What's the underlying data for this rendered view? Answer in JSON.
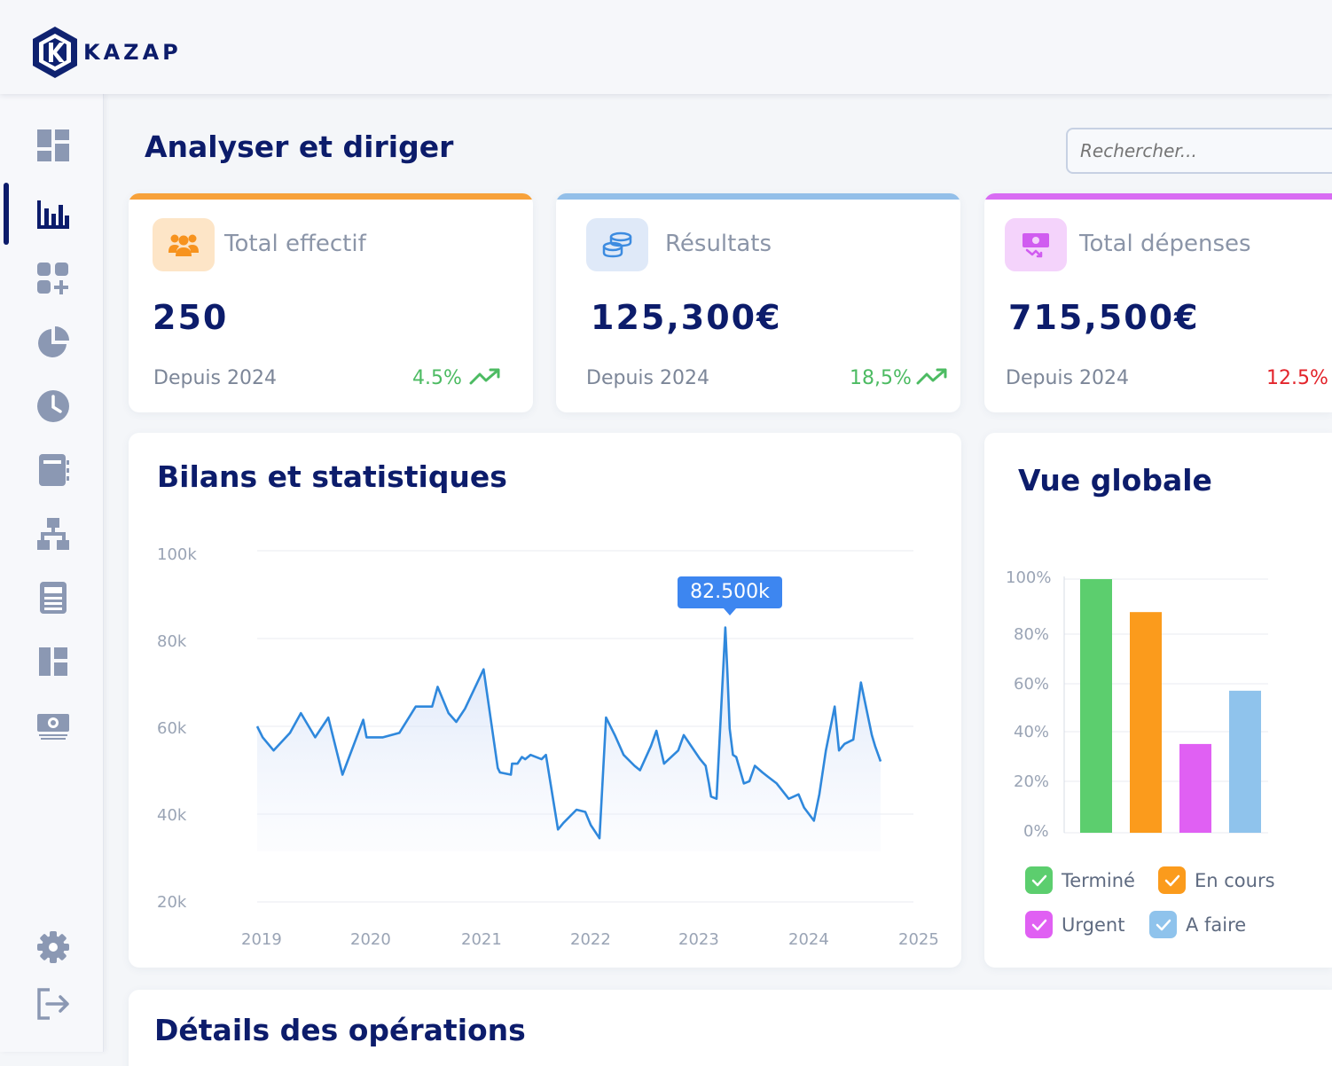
{
  "brand": {
    "name": "KAZAP"
  },
  "sidebar": {
    "items": [
      {
        "name": "dashboard-icon"
      },
      {
        "name": "bar-chart-icon"
      },
      {
        "name": "add-widget-icon"
      },
      {
        "name": "pie-chart-icon"
      },
      {
        "name": "clock-icon"
      },
      {
        "name": "notebook-icon"
      },
      {
        "name": "org-chart-icon"
      },
      {
        "name": "document-icon"
      },
      {
        "name": "layout-icon"
      },
      {
        "name": "money-icon"
      }
    ],
    "active_index": 1,
    "bottom": [
      {
        "name": "settings-icon"
      },
      {
        "name": "logout-icon"
      }
    ]
  },
  "header": {
    "title": "Analyser et diriger",
    "search_placeholder": "Rechercher..."
  },
  "stats": [
    {
      "label": "Total effectif",
      "value": "250",
      "since": "Depuis 2024",
      "pct": "4.5%",
      "trend": "up",
      "accent": "#f7a13a",
      "icon": "users-icon",
      "icon_bg": "#fde5c7",
      "icon_color": "#f7931e",
      "pct_color": "#4cbb62"
    },
    {
      "label": "Résultats",
      "value": "125,300€",
      "since": "Depuis 2024",
      "pct": "18,5%",
      "trend": "up",
      "accent": "#93bfe9",
      "icon": "coins-icon",
      "icon_bg": "#dfe9f8",
      "icon_color": "#3c8be0",
      "pct_color": "#4cbb62"
    },
    {
      "label": "Total dépenses",
      "value": "715,500€",
      "since": "Depuis 2024",
      "pct": "12.5%",
      "trend": "down",
      "accent": "#d86cf3",
      "icon": "expense-icon",
      "icon_bg": "#f4d3fb",
      "icon_color": "#d05cf0",
      "pct_color": "#e3242b"
    }
  ],
  "line_section": {
    "title": "Bilans et statistiques",
    "tooltip": "82.500k"
  },
  "bar_section": {
    "title": "Vue globale"
  },
  "details_section": {
    "title": "Détails des opérations"
  },
  "chart_data": [
    {
      "type": "line",
      "ylim": [
        20000,
        100000
      ],
      "y_ticks": [
        "100k",
        "80k",
        "60k",
        "40k",
        "20k"
      ],
      "x_ticks": [
        "2019",
        "2020",
        "2021",
        "2022",
        "2023",
        "2024",
        "2025"
      ],
      "xlim": [
        2019,
        2025
      ],
      "color": "#2f88dc",
      "series": [
        {
          "x": [
            2019.0,
            2019.05,
            2019.15,
            2019.3,
            2019.4,
            2019.53,
            2019.65,
            2019.78,
            2019.97,
            2020.0,
            2020.15,
            2020.3,
            2020.45,
            2020.6,
            2020.65,
            2020.75,
            2020.82,
            2020.9,
            2021.07,
            2021.2,
            2021.22,
            2021.32,
            2021.33,
            2021.38,
            2021.42,
            2021.45,
            2021.5,
            2021.6,
            2021.64,
            2021.75,
            2021.8,
            2021.92,
            2022.0,
            2022.05,
            2022.13,
            2022.19,
            2022.27,
            2022.35,
            2022.45,
            2022.5,
            2022.6,
            2022.65,
            2022.72,
            2022.85,
            2022.9,
            2023.05,
            2023.1,
            2023.13,
            2023.15,
            2023.2,
            2023.28,
            2023.3,
            2023.32,
            2023.35,
            2023.38,
            2023.45,
            2023.5,
            2023.55,
            2023.62,
            2023.67,
            2023.75,
            2023.86,
            2023.95,
            2024.0,
            2024.09,
            2024.14,
            2024.2,
            2024.28,
            2024.32,
            2024.37,
            2024.45,
            2024.52,
            2024.62,
            2024.65,
            2024.7
          ],
          "y": [
            60000,
            57500,
            54500,
            58500,
            63000,
            57500,
            62000,
            49000,
            61500,
            57500,
            57500,
            58500,
            64500,
            64500,
            69000,
            63000,
            61000,
            64000,
            73000,
            50500,
            49500,
            49000,
            51500,
            51500,
            53000,
            52500,
            53500,
            52500,
            53500,
            36500,
            38000,
            41000,
            40500,
            37500,
            34500,
            62000,
            58000,
            53500,
            51000,
            50000,
            55500,
            59000,
            51500,
            54500,
            58000,
            52500,
            51000,
            47000,
            44000,
            43500,
            82500,
            72000,
            59500,
            53500,
            53000,
            47000,
            47500,
            51000,
            49500,
            48500,
            47000,
            43500,
            44500,
            41500,
            38500,
            44500,
            54500,
            64500,
            54500,
            56000,
            57000,
            70000,
            58000,
            55500,
            52000
          ]
        }
      ]
    },
    {
      "type": "bar",
      "ylim": [
        0,
        100
      ],
      "y_ticks": [
        "100%",
        "80%",
        "60%",
        "40%",
        "20%",
        "0%"
      ],
      "categories": [
        "Terminé",
        "En cours",
        "Urgent",
        "A faire"
      ],
      "values": [
        100,
        87,
        35,
        56
      ],
      "colors": [
        "#5cce6e",
        "#fb9b1c",
        "#e060f3",
        "#8fc3ec"
      ],
      "legend_position": "bottom"
    }
  ]
}
